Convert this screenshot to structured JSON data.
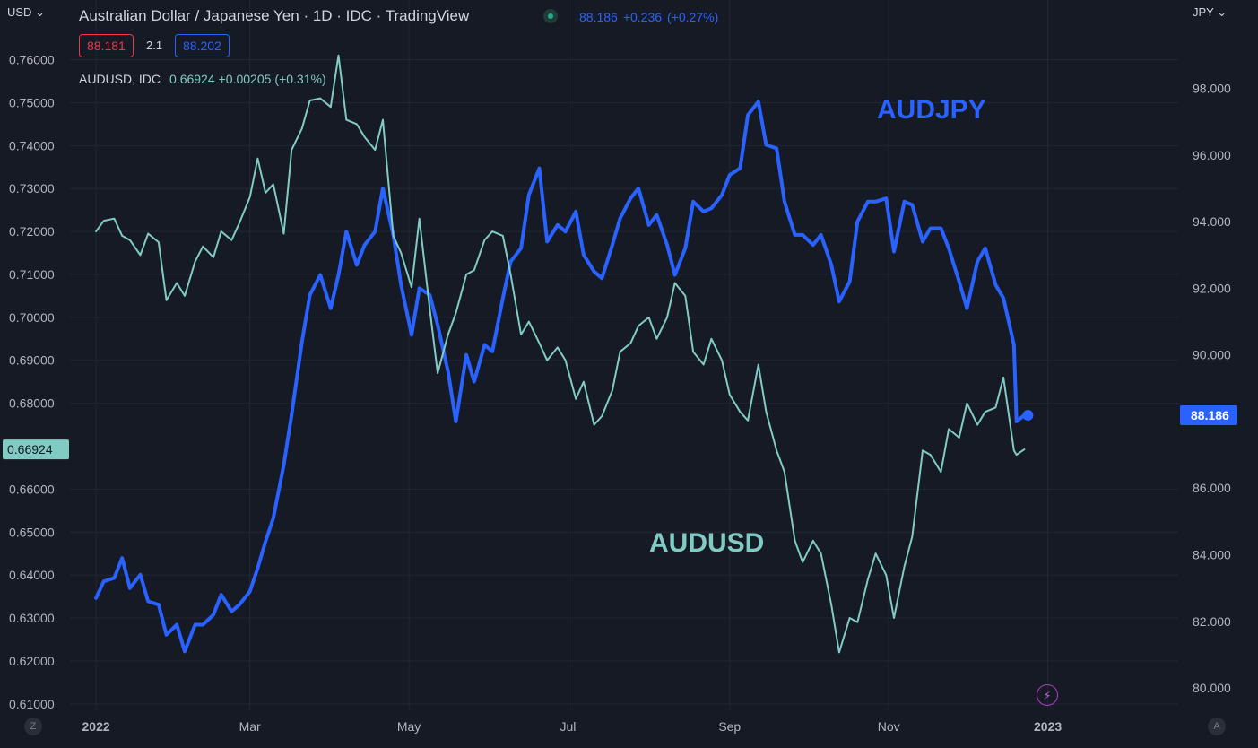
{
  "header": {
    "title": "Australian Dollar / Japanese Yen · 1D · IDC · TradingView",
    "last": "88.186",
    "change": "+0.236",
    "change_pct": "(+0.27%)",
    "bid": "88.181",
    "spread": "2.1",
    "ask": "88.202"
  },
  "overlay": {
    "symbol": "AUDUSD, IDC",
    "last": "0.66924",
    "change": "+0.00205",
    "change_pct": "(+0.31%)"
  },
  "left_axis_unit": "USD",
  "right_axis_unit": "JPY",
  "corner_left": "Z",
  "corner_right": "A",
  "colors": {
    "background": "#161a25",
    "grid": "#232733",
    "audjpy": "#2962ff",
    "audusd": "#80cbc4",
    "bid": "#f23645",
    "alert": "#c060d8"
  },
  "chart_data": {
    "type": "line",
    "x_tick_labels": [
      "2022",
      "Mar",
      "May",
      "Jul",
      "Sep",
      "Nov",
      "2023"
    ],
    "x_tick_dates": [
      "2022-01-01",
      "2022-03-01",
      "2022-05-01",
      "2022-07-01",
      "2022-09-01",
      "2022-11-01",
      "2023-01-01"
    ],
    "xlim": [
      "2021-12-22",
      "2023-02-20"
    ],
    "left_axis": {
      "label": "USD",
      "ticks": [
        "0.76000",
        "0.75000",
        "0.74000",
        "0.73000",
        "0.72000",
        "0.71000",
        "0.70000",
        "0.69000",
        "0.68000",
        "0.66000",
        "0.65000",
        "0.64000",
        "0.63000",
        "0.62000",
        "0.61000"
      ],
      "ylim": [
        0.6085,
        0.7645
      ],
      "last_value_label": "0.66924"
    },
    "right_axis": {
      "label": "JPY",
      "ticks": [
        "98.000",
        "96.000",
        "94.000",
        "92.000",
        "90.000",
        "86.000",
        "84.000",
        "82.000",
        "80.000"
      ],
      "ylim": [
        79.33,
        99.44
      ],
      "last_value_label": "88.186"
    },
    "annotations": [
      "AUDJPY",
      "AUDUSD"
    ],
    "series": [
      {
        "name": "AUDJPY",
        "axis": "right",
        "points": [
          [
            "2022-01-01",
            82.7
          ],
          [
            "2022-01-04",
            83.2
          ],
          [
            "2022-01-08",
            83.3
          ],
          [
            "2022-01-11",
            83.9
          ],
          [
            "2022-01-14",
            83.0
          ],
          [
            "2022-01-18",
            83.4
          ],
          [
            "2022-01-21",
            82.6
          ],
          [
            "2022-01-25",
            82.5
          ],
          [
            "2022-01-28",
            81.6
          ],
          [
            "2022-02-01",
            81.9
          ],
          [
            "2022-02-04",
            81.1
          ],
          [
            "2022-02-08",
            81.9
          ],
          [
            "2022-02-11",
            81.9
          ],
          [
            "2022-02-15",
            82.2
          ],
          [
            "2022-02-18",
            82.8
          ],
          [
            "2022-02-22",
            82.3
          ],
          [
            "2022-02-25",
            82.5
          ],
          [
            "2022-03-01",
            82.9
          ],
          [
            "2022-03-04",
            83.6
          ],
          [
            "2022-03-07",
            84.4
          ],
          [
            "2022-03-10",
            85.1
          ],
          [
            "2022-03-14",
            86.7
          ],
          [
            "2022-03-17",
            88.2
          ],
          [
            "2022-03-21",
            90.4
          ],
          [
            "2022-03-24",
            91.8
          ],
          [
            "2022-03-28",
            92.4
          ],
          [
            "2022-04-01",
            91.4
          ],
          [
            "2022-04-04",
            92.4
          ],
          [
            "2022-04-07",
            93.7
          ],
          [
            "2022-04-11",
            92.7
          ],
          [
            "2022-04-14",
            93.3
          ],
          [
            "2022-04-18",
            93.7
          ],
          [
            "2022-04-21",
            95.0
          ],
          [
            "2022-04-25",
            93.6
          ],
          [
            "2022-04-28",
            92.1
          ],
          [
            "2022-05-02",
            90.6
          ],
          [
            "2022-05-05",
            92.0
          ],
          [
            "2022-05-09",
            91.8
          ],
          [
            "2022-05-12",
            90.9
          ],
          [
            "2022-05-16",
            89.5
          ],
          [
            "2022-05-19",
            88.0
          ],
          [
            "2022-05-23",
            90.0
          ],
          [
            "2022-05-26",
            89.2
          ],
          [
            "2022-05-30",
            90.3
          ],
          [
            "2022-06-02",
            90.1
          ],
          [
            "2022-06-06",
            91.7
          ],
          [
            "2022-06-09",
            92.8
          ],
          [
            "2022-06-13",
            93.2
          ],
          [
            "2022-06-16",
            94.8
          ],
          [
            "2022-06-20",
            95.6
          ],
          [
            "2022-06-23",
            93.4
          ],
          [
            "2022-06-27",
            93.9
          ],
          [
            "2022-06-30",
            93.7
          ],
          [
            "2022-07-04",
            94.3
          ],
          [
            "2022-07-07",
            93.0
          ],
          [
            "2022-07-11",
            92.5
          ],
          [
            "2022-07-14",
            92.3
          ],
          [
            "2022-07-18",
            93.3
          ],
          [
            "2022-07-21",
            94.1
          ],
          [
            "2022-07-25",
            94.7
          ],
          [
            "2022-07-28",
            95.0
          ],
          [
            "2022-08-01",
            93.9
          ],
          [
            "2022-08-04",
            94.2
          ],
          [
            "2022-08-08",
            93.3
          ],
          [
            "2022-08-11",
            92.4
          ],
          [
            "2022-08-15",
            93.2
          ],
          [
            "2022-08-18",
            94.6
          ],
          [
            "2022-08-22",
            94.3
          ],
          [
            "2022-08-25",
            94.4
          ],
          [
            "2022-08-29",
            94.8
          ],
          [
            "2022-09-01",
            95.4
          ],
          [
            "2022-09-05",
            95.6
          ],
          [
            "2022-09-08",
            97.2
          ],
          [
            "2022-09-12",
            97.6
          ],
          [
            "2022-09-15",
            96.3
          ],
          [
            "2022-09-19",
            96.2
          ],
          [
            "2022-09-22",
            94.6
          ],
          [
            "2022-09-26",
            93.6
          ],
          [
            "2022-09-29",
            93.6
          ],
          [
            "2022-10-03",
            93.3
          ],
          [
            "2022-10-06",
            93.6
          ],
          [
            "2022-10-10",
            92.7
          ],
          [
            "2022-10-13",
            91.6
          ],
          [
            "2022-10-17",
            92.2
          ],
          [
            "2022-10-20",
            94.0
          ],
          [
            "2022-10-24",
            94.6
          ],
          [
            "2022-10-27",
            94.6
          ],
          [
            "2022-10-31",
            94.7
          ],
          [
            "2022-11-03",
            93.1
          ],
          [
            "2022-11-07",
            94.6
          ],
          [
            "2022-11-10",
            94.5
          ],
          [
            "2022-11-14",
            93.4
          ],
          [
            "2022-11-17",
            93.8
          ],
          [
            "2022-11-21",
            93.8
          ],
          [
            "2022-11-24",
            93.2
          ],
          [
            "2022-11-28",
            92.2
          ],
          [
            "2022-12-01",
            91.4
          ],
          [
            "2022-12-05",
            92.8
          ],
          [
            "2022-12-08",
            93.2
          ],
          [
            "2022-12-12",
            92.1
          ],
          [
            "2022-12-15",
            91.7
          ],
          [
            "2022-12-19",
            90.3
          ],
          [
            "2022-12-20",
            88.0
          ],
          [
            "2022-12-23",
            88.186
          ]
        ]
      },
      {
        "name": "AUDUSD",
        "axis": "left",
        "points": [
          [
            "2022-01-01",
            0.72
          ],
          [
            "2022-01-04",
            0.7225
          ],
          [
            "2022-01-08",
            0.723
          ],
          [
            "2022-01-11",
            0.719
          ],
          [
            "2022-01-14",
            0.718
          ],
          [
            "2022-01-18",
            0.7145
          ],
          [
            "2022-01-21",
            0.7195
          ],
          [
            "2022-01-25",
            0.7175
          ],
          [
            "2022-01-28",
            0.704
          ],
          [
            "2022-02-01",
            0.708
          ],
          [
            "2022-02-04",
            0.705
          ],
          [
            "2022-02-08",
            0.713
          ],
          [
            "2022-02-11",
            0.7165
          ],
          [
            "2022-02-15",
            0.714
          ],
          [
            "2022-02-18",
            0.72
          ],
          [
            "2022-02-22",
            0.718
          ],
          [
            "2022-02-25",
            0.722
          ],
          [
            "2022-03-01",
            0.728
          ],
          [
            "2022-03-04",
            0.737
          ],
          [
            "2022-03-07",
            0.729
          ],
          [
            "2022-03-10",
            0.731
          ],
          [
            "2022-03-14",
            0.7195
          ],
          [
            "2022-03-17",
            0.739
          ],
          [
            "2022-03-21",
            0.744
          ],
          [
            "2022-03-24",
            0.7505
          ],
          [
            "2022-03-28",
            0.751
          ],
          [
            "2022-04-01",
            0.749
          ],
          [
            "2022-04-04",
            0.761
          ],
          [
            "2022-04-07",
            0.746
          ],
          [
            "2022-04-11",
            0.745
          ],
          [
            "2022-04-14",
            0.742
          ],
          [
            "2022-04-18",
            0.739
          ],
          [
            "2022-04-21",
            0.746
          ],
          [
            "2022-04-25",
            0.719
          ],
          [
            "2022-04-28",
            0.715
          ],
          [
            "2022-05-02",
            0.707
          ],
          [
            "2022-05-05",
            0.723
          ],
          [
            "2022-05-09",
            0.702
          ],
          [
            "2022-05-12",
            0.687
          ],
          [
            "2022-05-16",
            0.696
          ],
          [
            "2022-05-19",
            0.701
          ],
          [
            "2022-05-23",
            0.71
          ],
          [
            "2022-05-26",
            0.711
          ],
          [
            "2022-05-30",
            0.718
          ],
          [
            "2022-06-02",
            0.72
          ],
          [
            "2022-06-06",
            0.719
          ],
          [
            "2022-06-09",
            0.71
          ],
          [
            "2022-06-13",
            0.696
          ],
          [
            "2022-06-16",
            0.699
          ],
          [
            "2022-06-20",
            0.694
          ],
          [
            "2022-06-23",
            0.69
          ],
          [
            "2022-06-27",
            0.693
          ],
          [
            "2022-06-30",
            0.69
          ],
          [
            "2022-07-04",
            0.681
          ],
          [
            "2022-07-07",
            0.685
          ],
          [
            "2022-07-11",
            0.675
          ],
          [
            "2022-07-14",
            0.677
          ],
          [
            "2022-07-18",
            0.683
          ],
          [
            "2022-07-21",
            0.692
          ],
          [
            "2022-07-25",
            0.694
          ],
          [
            "2022-07-28",
            0.698
          ],
          [
            "2022-08-01",
            0.7
          ],
          [
            "2022-08-04",
            0.695
          ],
          [
            "2022-08-08",
            0.7
          ],
          [
            "2022-08-11",
            0.708
          ],
          [
            "2022-08-15",
            0.705
          ],
          [
            "2022-08-18",
            0.692
          ],
          [
            "2022-08-22",
            0.689
          ],
          [
            "2022-08-25",
            0.695
          ],
          [
            "2022-08-29",
            0.69
          ],
          [
            "2022-09-01",
            0.682
          ],
          [
            "2022-09-05",
            0.678
          ],
          [
            "2022-09-08",
            0.676
          ],
          [
            "2022-09-12",
            0.689
          ],
          [
            "2022-09-15",
            0.678
          ],
          [
            "2022-09-19",
            0.669
          ],
          [
            "2022-09-22",
            0.664
          ],
          [
            "2022-09-26",
            0.648
          ],
          [
            "2022-09-29",
            0.643
          ],
          [
            "2022-10-03",
            0.648
          ],
          [
            "2022-10-06",
            0.645
          ],
          [
            "2022-10-10",
            0.633
          ],
          [
            "2022-10-13",
            0.622
          ],
          [
            "2022-10-17",
            0.63
          ],
          [
            "2022-10-20",
            0.629
          ],
          [
            "2022-10-24",
            0.639
          ],
          [
            "2022-10-27",
            0.645
          ],
          [
            "2022-10-31",
            0.64
          ],
          [
            "2022-11-03",
            0.63
          ],
          [
            "2022-11-07",
            0.642
          ],
          [
            "2022-11-10",
            0.649
          ],
          [
            "2022-11-14",
            0.669
          ],
          [
            "2022-11-17",
            0.668
          ],
          [
            "2022-11-21",
            0.664
          ],
          [
            "2022-11-24",
            0.674
          ],
          [
            "2022-11-28",
            0.672
          ],
          [
            "2022-12-01",
            0.68
          ],
          [
            "2022-12-05",
            0.675
          ],
          [
            "2022-12-08",
            0.678
          ],
          [
            "2022-12-12",
            0.679
          ],
          [
            "2022-12-15",
            0.686
          ],
          [
            "2022-12-19",
            0.669
          ],
          [
            "2022-12-20",
            0.668
          ],
          [
            "2022-12-23",
            0.66924
          ]
        ]
      }
    ]
  }
}
